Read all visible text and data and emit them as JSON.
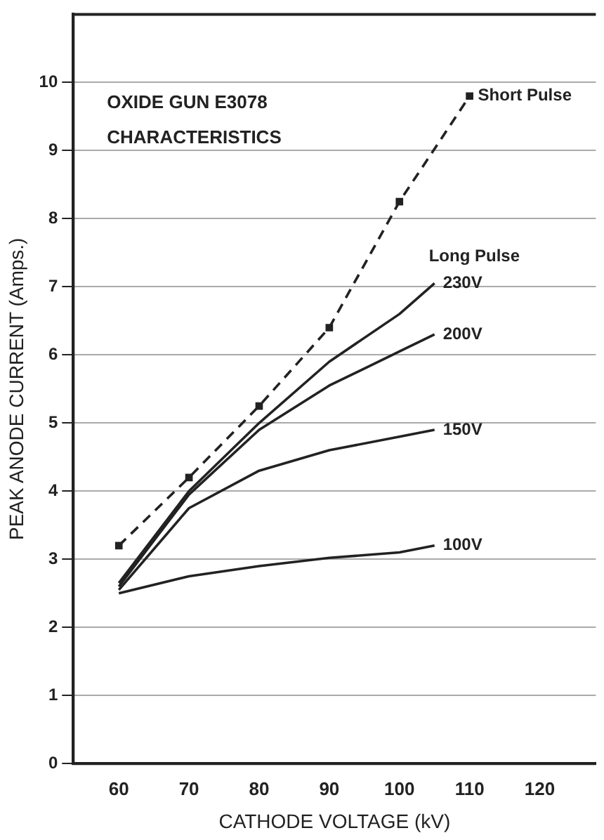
{
  "chart_data": {
    "type": "line",
    "title": "OXIDE GUN E3078 CHARACTERISTICS",
    "xlabel": "CATHODE VOLTAGE (kV)",
    "ylabel": "PEAK ANODE CURRENT (Amps.)",
    "x": [
      60,
      70,
      80,
      90,
      100,
      105
    ],
    "series": [
      {
        "name": "Short Pulse",
        "color": "#222222",
        "x": [
          60,
          70,
          80,
          90,
          100,
          110
        ],
        "values": [
          3.2,
          4.2,
          5.25,
          6.4,
          8.25,
          9.8
        ],
        "line_style": "dashed",
        "marker": "square"
      },
      {
        "name": "230V",
        "color": "#222222",
        "values": [
          2.65,
          4.0,
          5.0,
          5.9,
          6.6,
          7.05
        ],
        "line_style": "solid",
        "marker": "none"
      },
      {
        "name": "200V",
        "color": "#222222",
        "values": [
          2.6,
          3.95,
          4.9,
          5.55,
          6.05,
          6.3
        ],
        "line_style": "solid",
        "marker": "none"
      },
      {
        "name": "150V",
        "color": "#222222",
        "values": [
          2.55,
          3.75,
          4.3,
          4.6,
          4.8,
          4.9
        ],
        "line_style": "solid",
        "marker": "none"
      },
      {
        "name": "100V",
        "color": "#222222",
        "values": [
          2.5,
          2.75,
          2.9,
          3.02,
          3.1,
          3.2
        ],
        "line_style": "solid",
        "marker": "none"
      }
    ],
    "annotations": [
      {
        "text": "Long Pulse",
        "x": 105,
        "y": 7.05
      }
    ],
    "xlim": [
      53.5,
      128
    ],
    "xticks": [
      60,
      70,
      80,
      90,
      100,
      110,
      120
    ],
    "ylim": [
      0,
      11
    ],
    "yticks": [
      0,
      1,
      2,
      3,
      4,
      5,
      6,
      7,
      8,
      9,
      10
    ],
    "grid": "y",
    "legend": false
  }
}
